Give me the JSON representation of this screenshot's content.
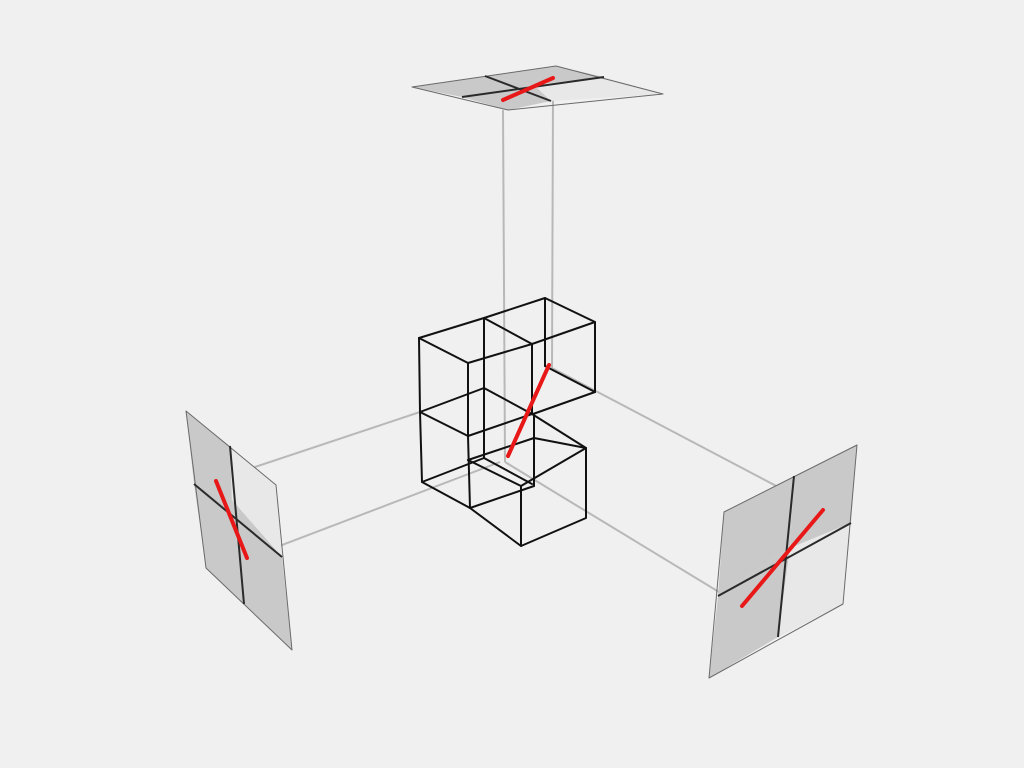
{
  "colors": {
    "background": "#f0f0f0",
    "panel_dark": "#c9c9c9",
    "panel_light": "#e8e8e8",
    "cube_edge": "#111111",
    "projection_line": "#b8b8b8",
    "segment": "#e81818"
  },
  "diagram": {
    "cube_count": 3,
    "projection_planes": [
      "top",
      "left",
      "right"
    ],
    "segment_color_name": "red"
  }
}
